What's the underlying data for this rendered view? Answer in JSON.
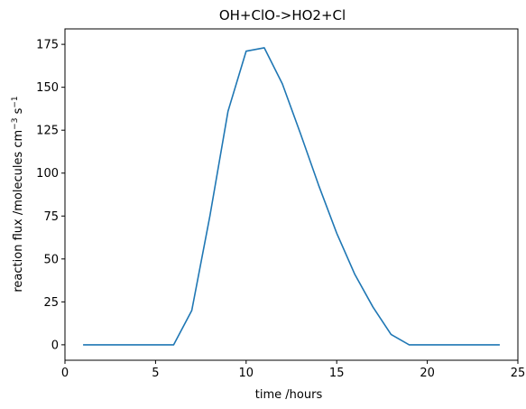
{
  "chart_data": {
    "type": "line",
    "title": "OH+ClO->HO2+Cl",
    "xlabel": "time /hours",
    "ylabel_main": "reaction flux /molecules cm",
    "ylabel_sup1": "−3",
    "ylabel_mid": " s",
    "ylabel_sup2": "−1",
    "xlim": [
      0,
      25
    ],
    "ylim": [
      -9,
      184
    ],
    "x_ticks": [
      0,
      5,
      10,
      15,
      20,
      25
    ],
    "x_tick_labels": [
      "0",
      "5",
      "10",
      "15",
      "20",
      "25"
    ],
    "y_ticks": [
      0,
      25,
      50,
      75,
      100,
      125,
      150,
      175
    ],
    "y_tick_labels": [
      "0",
      "25",
      "50",
      "75",
      "100",
      "125",
      "150",
      "175"
    ],
    "grid": false,
    "series": [
      {
        "color": "#1f77b4",
        "x": [
          1,
          2,
          3,
          4,
          5,
          6,
          7,
          8,
          9,
          10,
          11,
          12,
          13,
          14,
          15,
          16,
          17,
          18,
          19,
          20,
          21,
          22,
          23,
          24
        ],
        "y": [
          0,
          0,
          0,
          0,
          0,
          0,
          20,
          75,
          136,
          171,
          173,
          152,
          123,
          93,
          65,
          41,
          22,
          6,
          0,
          0,
          0,
          0,
          0,
          0
        ]
      }
    ]
  }
}
